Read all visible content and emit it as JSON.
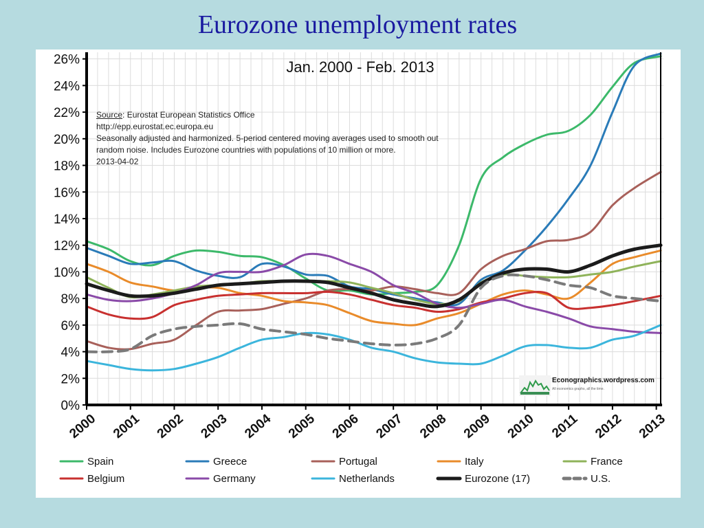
{
  "slide_title": "Eurozone unemployment rates",
  "note": {
    "source_label": "Source",
    "source_text": ": Eurostat European Statistics Office",
    "url": "http://epp.eurostat.ec.europa.eu",
    "line1": "Seasonally adjusted and harmonized. 5-period centered moving averages used to smooth out",
    "line2": "random noise. Includes Eurozone countries with populations of 10 million or more.",
    "date": "2013-04-02"
  },
  "logo": {
    "text": "Econographics.wordpress.com",
    "tagline": "All economics graphs, all the time."
  },
  "colors": {
    "Spain": "#3cb96a",
    "Greece": "#2a7bb8",
    "Portugal": "#a8605a",
    "Italy": "#e98b2a",
    "France": "#8fb35a",
    "Belgium": "#c8302f",
    "Germany": "#8a4aa8",
    "Netherlands": "#3bb5dc",
    "Eurozone (17)": "#1b1b1b",
    "U.S.": "#7a7a7a"
  },
  "chart_data": {
    "type": "line",
    "title": "Jan. 2000 - Feb. 2013",
    "xlabel": "",
    "ylabel": "",
    "xlim": [
      2000,
      2013.1
    ],
    "ylim": [
      0,
      26.5
    ],
    "x_ticks": [
      "2000",
      "2001",
      "2002",
      "2003",
      "2004",
      "2005",
      "2006",
      "2007",
      "2008",
      "2009",
      "2010",
      "2011",
      "2012",
      "2013"
    ],
    "y_ticks": [
      "0%",
      "2%",
      "4%",
      "6%",
      "8%",
      "10%",
      "12%",
      "14%",
      "16%",
      "18%",
      "20%",
      "22%",
      "24%",
      "26%"
    ],
    "grid": true,
    "legend_position": "bottom",
    "x": [
      2000,
      2000.5,
      2001,
      2001.5,
      2002,
      2002.5,
      2003,
      2003.5,
      2004,
      2004.5,
      2005,
      2005.5,
      2006,
      2006.5,
      2007,
      2007.5,
      2008,
      2008.5,
      2009,
      2009.5,
      2010,
      2010.5,
      2011,
      2011.5,
      2012,
      2012.5,
      2013.1
    ],
    "series": [
      {
        "name": "Spain",
        "values": [
          12.3,
          11.7,
          10.8,
          10.5,
          11.2,
          11.6,
          11.5,
          11.2,
          11.1,
          10.5,
          9.5,
          8.6,
          8.6,
          8.3,
          8.4,
          8.5,
          9.0,
          12.0,
          17.0,
          18.6,
          19.6,
          20.3,
          20.6,
          21.8,
          23.9,
          25.7,
          26.2
        ]
      },
      {
        "name": "Greece",
        "values": [
          11.8,
          11.2,
          10.6,
          10.7,
          10.8,
          10.1,
          9.7,
          9.6,
          10.6,
          10.4,
          9.8,
          9.7,
          8.9,
          8.7,
          8.3,
          8.0,
          7.7,
          7.6,
          9.4,
          10.1,
          11.6,
          13.4,
          15.5,
          18.0,
          22.0,
          25.5,
          26.4
        ]
      },
      {
        "name": "Portugal",
        "values": [
          4.8,
          4.3,
          4.2,
          4.6,
          4.9,
          6.0,
          7.0,
          7.1,
          7.2,
          7.6,
          8.0,
          8.6,
          8.7,
          8.6,
          8.9,
          8.7,
          8.4,
          8.4,
          10.2,
          11.2,
          11.7,
          12.3,
          12.4,
          13.0,
          15.0,
          16.3,
          17.5
        ]
      },
      {
        "name": "Italy",
        "values": [
          10.6,
          10.0,
          9.2,
          8.9,
          8.6,
          8.8,
          8.8,
          8.4,
          8.2,
          7.8,
          7.7,
          7.5,
          6.9,
          6.3,
          6.1,
          6.0,
          6.5,
          6.9,
          7.6,
          8.3,
          8.6,
          8.3,
          8.0,
          9.2,
          10.6,
          11.1,
          11.6
        ]
      },
      {
        "name": "France",
        "values": [
          9.6,
          8.8,
          8.1,
          8.3,
          8.6,
          8.9,
          9.0,
          9.1,
          9.3,
          9.3,
          9.3,
          9.3,
          9.2,
          8.8,
          8.4,
          7.9,
          7.6,
          7.8,
          9.2,
          9.8,
          9.7,
          9.6,
          9.6,
          9.8,
          10.0,
          10.4,
          10.8
        ]
      },
      {
        "name": "Belgium",
        "values": [
          7.4,
          6.8,
          6.5,
          6.6,
          7.5,
          7.9,
          8.2,
          8.3,
          8.4,
          8.4,
          8.4,
          8.5,
          8.3,
          7.9,
          7.5,
          7.3,
          7.0,
          7.2,
          7.7,
          8.0,
          8.4,
          8.4,
          7.3,
          7.3,
          7.5,
          7.8,
          8.2
        ]
      },
      {
        "name": "Germany",
        "values": [
          8.3,
          7.9,
          7.8,
          8.0,
          8.4,
          9.0,
          9.9,
          10.0,
          10.0,
          10.5,
          11.3,
          11.2,
          10.6,
          10.0,
          9.0,
          8.4,
          7.6,
          7.3,
          7.6,
          7.9,
          7.4,
          7.0,
          6.5,
          5.9,
          5.7,
          5.5,
          5.4
        ]
      },
      {
        "name": "Netherlands",
        "values": [
          3.3,
          3.0,
          2.7,
          2.6,
          2.7,
          3.1,
          3.6,
          4.3,
          4.9,
          5.1,
          5.4,
          5.3,
          4.9,
          4.3,
          4.0,
          3.5,
          3.2,
          3.1,
          3.1,
          3.7,
          4.4,
          4.5,
          4.3,
          4.3,
          4.9,
          5.2,
          6.0
        ]
      },
      {
        "name": "Eurozone (17)",
        "values": [
          9.1,
          8.6,
          8.2,
          8.2,
          8.4,
          8.7,
          9.0,
          9.1,
          9.2,
          9.3,
          9.3,
          9.2,
          8.8,
          8.4,
          7.9,
          7.6,
          7.4,
          7.9,
          9.1,
          9.9,
          10.2,
          10.2,
          10.0,
          10.5,
          11.2,
          11.7,
          12.0
        ]
      },
      {
        "name": "U.S.",
        "values": [
          4.0,
          4.0,
          4.2,
          5.2,
          5.7,
          5.9,
          6.0,
          6.1,
          5.7,
          5.5,
          5.3,
          5.0,
          4.8,
          4.6,
          4.5,
          4.6,
          5.0,
          6.0,
          8.8,
          9.7,
          9.7,
          9.4,
          9.0,
          8.8,
          8.2,
          8.0,
          7.8
        ]
      }
    ]
  }
}
